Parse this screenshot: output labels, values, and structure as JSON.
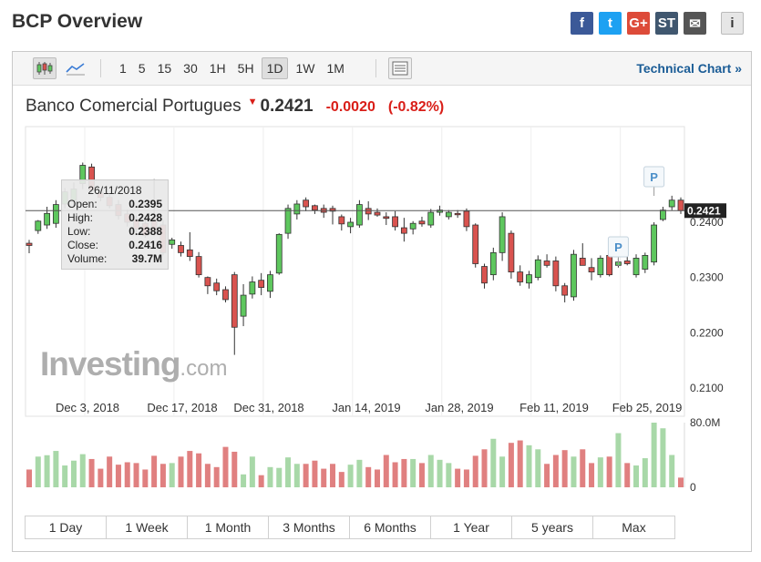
{
  "title": "BCP Overview",
  "share": [
    {
      "name": "facebook-icon",
      "glyph": "f",
      "color": "#3b5998"
    },
    {
      "name": "twitter-icon",
      "glyph": "t",
      "color": "#1da1f2"
    },
    {
      "name": "google-plus-icon",
      "glyph": "G+",
      "color": "#dd4b39"
    },
    {
      "name": "stocktwits-icon",
      "glyph": "ST",
      "color": "#40576f"
    },
    {
      "name": "email-icon",
      "glyph": "✉",
      "color": "#555555"
    },
    {
      "name": "info-icon",
      "glyph": "i",
      "color": "#e6e6e6"
    }
  ],
  "toolbar": {
    "intervals": [
      "1",
      "5",
      "15",
      "30",
      "1H",
      "5H",
      "1D",
      "1W",
      "1M"
    ],
    "active_interval": "1D",
    "technical_link": "Technical Chart »"
  },
  "quote": {
    "name": "Banco Comercial Portugues",
    "price": "0.2421",
    "change": "-0.0020",
    "change_pct": "(-0.82%)",
    "last_label": "0.2421"
  },
  "tooltip": {
    "date": "26/11/2018",
    "rows": [
      {
        "label": "Open:",
        "value": "0.2395"
      },
      {
        "label": "High:",
        "value": "0.2428"
      },
      {
        "label": "Low:",
        "value": "0.2388"
      },
      {
        "label": "Close:",
        "value": "0.2416"
      },
      {
        "label": "Volume:",
        "value": "39.7M"
      }
    ]
  },
  "watermark": {
    "brand": "Investing",
    "suffix": ".com"
  },
  "ranges": [
    "1 Day",
    "1 Week",
    "1 Month",
    "3 Months",
    "6 Months",
    "1 Year",
    "5 years",
    "Max"
  ],
  "colors": {
    "up": "#5ec75e",
    "down": "#d9534f",
    "vol_up": "#a8d8a8",
    "vol_down": "#e08080"
  },
  "chart_data": {
    "type": "candlestick",
    "ylim": [
      0.21,
      0.25
    ],
    "yticks": [
      "0.2100",
      "0.2200",
      "0.2300",
      "0.2400"
    ],
    "xticks": [
      "Dec 3, 2018",
      "Dec 17, 2018",
      "Dec 31, 2018",
      "Jan 14, 2019",
      "Jan 28, 2019",
      "Feb 11, 2019",
      "Feb 25, 2019"
    ],
    "volume_ticks": [
      "80.0M",
      "0"
    ],
    "volume_max": 80,
    "last_price": 0.2421,
    "markers": [
      "P",
      "P"
    ],
    "candles": [
      {
        "o": 0.2362,
        "h": 0.2368,
        "l": 0.2344,
        "c": 0.2358,
        "v": 22
      },
      {
        "o": 0.2385,
        "h": 0.2404,
        "l": 0.2379,
        "c": 0.2402,
        "v": 38
      },
      {
        "o": 0.2395,
        "h": 0.2428,
        "l": 0.2388,
        "c": 0.2416,
        "v": 39.7
      },
      {
        "o": 0.2398,
        "h": 0.244,
        "l": 0.239,
        "c": 0.2432,
        "v": 45
      },
      {
        "o": 0.2433,
        "h": 0.2462,
        "l": 0.2425,
        "c": 0.2455,
        "v": 27
      },
      {
        "o": 0.244,
        "h": 0.2472,
        "l": 0.2428,
        "c": 0.246,
        "v": 33
      },
      {
        "o": 0.247,
        "h": 0.2508,
        "l": 0.246,
        "c": 0.2503,
        "v": 41
      },
      {
        "o": 0.25,
        "h": 0.2506,
        "l": 0.2452,
        "c": 0.2458,
        "v": 35
      },
      {
        "o": 0.2453,
        "h": 0.246,
        "l": 0.2438,
        "c": 0.2445,
        "v": 23
      },
      {
        "o": 0.2445,
        "h": 0.245,
        "l": 0.2425,
        "c": 0.243,
        "v": 38
      },
      {
        "o": 0.2432,
        "h": 0.244,
        "l": 0.2405,
        "c": 0.2412,
        "v": 28
      },
      {
        "o": 0.2415,
        "h": 0.2423,
        "l": 0.2392,
        "c": 0.24,
        "v": 31
      },
      {
        "o": 0.2405,
        "h": 0.2412,
        "l": 0.238,
        "c": 0.2388,
        "v": 30
      },
      {
        "o": 0.2398,
        "h": 0.241,
        "l": 0.2372,
        "c": 0.2376,
        "v": 22
      },
      {
        "o": 0.2405,
        "h": 0.2478,
        "l": 0.2375,
        "c": 0.2385,
        "v": 39
      },
      {
        "o": 0.2395,
        "h": 0.2404,
        "l": 0.234,
        "c": 0.2345,
        "v": 29
      },
      {
        "o": 0.236,
        "h": 0.2372,
        "l": 0.2352,
        "c": 0.2368,
        "v": 30
      },
      {
        "o": 0.2358,
        "h": 0.2365,
        "l": 0.2338,
        "c": 0.2345,
        "v": 38
      },
      {
        "o": 0.235,
        "h": 0.2382,
        "l": 0.233,
        "c": 0.2338,
        "v": 45
      },
      {
        "o": 0.2338,
        "h": 0.2346,
        "l": 0.23,
        "c": 0.2305,
        "v": 42
      },
      {
        "o": 0.23,
        "h": 0.2302,
        "l": 0.227,
        "c": 0.2285,
        "v": 29
      },
      {
        "o": 0.229,
        "h": 0.2298,
        "l": 0.2268,
        "c": 0.2276,
        "v": 25
      },
      {
        "o": 0.2278,
        "h": 0.2284,
        "l": 0.2255,
        "c": 0.226,
        "v": 50
      },
      {
        "o": 0.2305,
        "h": 0.231,
        "l": 0.216,
        "c": 0.221,
        "v": 44
      },
      {
        "o": 0.223,
        "h": 0.2288,
        "l": 0.2212,
        "c": 0.2268,
        "v": 16
      },
      {
        "o": 0.227,
        "h": 0.2302,
        "l": 0.2262,
        "c": 0.2292,
        "v": 38
      },
      {
        "o": 0.2295,
        "h": 0.2308,
        "l": 0.2268,
        "c": 0.2282,
        "v": 15
      },
      {
        "o": 0.2275,
        "h": 0.2312,
        "l": 0.2263,
        "c": 0.2305,
        "v": 25
      },
      {
        "o": 0.2308,
        "h": 0.238,
        "l": 0.2305,
        "c": 0.2378,
        "v": 24
      },
      {
        "o": 0.238,
        "h": 0.2432,
        "l": 0.237,
        "c": 0.2425,
        "v": 37
      },
      {
        "o": 0.2415,
        "h": 0.244,
        "l": 0.2405,
        "c": 0.2433,
        "v": 29
      },
      {
        "o": 0.244,
        "h": 0.2445,
        "l": 0.242,
        "c": 0.2428,
        "v": 29
      },
      {
        "o": 0.243,
        "h": 0.2432,
        "l": 0.2415,
        "c": 0.2422,
        "v": 33
      },
      {
        "o": 0.2425,
        "h": 0.2432,
        "l": 0.2408,
        "c": 0.2418,
        "v": 23
      },
      {
        "o": 0.2425,
        "h": 0.243,
        "l": 0.2396,
        "c": 0.242,
        "v": 29
      },
      {
        "o": 0.241,
        "h": 0.2414,
        "l": 0.2385,
        "c": 0.2397,
        "v": 19
      },
      {
        "o": 0.2392,
        "h": 0.2408,
        "l": 0.238,
        "c": 0.24,
        "v": 28
      },
      {
        "o": 0.2395,
        "h": 0.244,
        "l": 0.239,
        "c": 0.2432,
        "v": 34
      },
      {
        "o": 0.2425,
        "h": 0.2438,
        "l": 0.2404,
        "c": 0.2415,
        "v": 25
      },
      {
        "o": 0.2418,
        "h": 0.2425,
        "l": 0.241,
        "c": 0.2413,
        "v": 22
      },
      {
        "o": 0.241,
        "h": 0.2418,
        "l": 0.2395,
        "c": 0.2407,
        "v": 40
      },
      {
        "o": 0.241,
        "h": 0.242,
        "l": 0.2385,
        "c": 0.2392,
        "v": 31
      },
      {
        "o": 0.239,
        "h": 0.2408,
        "l": 0.2365,
        "c": 0.238,
        "v": 35
      },
      {
        "o": 0.2388,
        "h": 0.2402,
        "l": 0.2378,
        "c": 0.2398,
        "v": 35
      },
      {
        "o": 0.2402,
        "h": 0.241,
        "l": 0.2392,
        "c": 0.2397,
        "v": 30
      },
      {
        "o": 0.2395,
        "h": 0.2424,
        "l": 0.239,
        "c": 0.2418,
        "v": 40
      },
      {
        "o": 0.2418,
        "h": 0.243,
        "l": 0.2412,
        "c": 0.2422,
        "v": 34
      },
      {
        "o": 0.241,
        "h": 0.2422,
        "l": 0.2405,
        "c": 0.2418,
        "v": 30
      },
      {
        "o": 0.2416,
        "h": 0.2422,
        "l": 0.2408,
        "c": 0.2414,
        "v": 23
      },
      {
        "o": 0.242,
        "h": 0.2425,
        "l": 0.2384,
        "c": 0.2392,
        "v": 22
      },
      {
        "o": 0.2395,
        "h": 0.2398,
        "l": 0.2318,
        "c": 0.2325,
        "v": 39
      },
      {
        "o": 0.232,
        "h": 0.2325,
        "l": 0.228,
        "c": 0.229,
        "v": 47
      },
      {
        "o": 0.2305,
        "h": 0.2354,
        "l": 0.2295,
        "c": 0.2345,
        "v": 60
      },
      {
        "o": 0.2345,
        "h": 0.2418,
        "l": 0.233,
        "c": 0.241,
        "v": 38
      },
      {
        "o": 0.238,
        "h": 0.2385,
        "l": 0.2298,
        "c": 0.231,
        "v": 55
      },
      {
        "o": 0.231,
        "h": 0.2322,
        "l": 0.2285,
        "c": 0.2292,
        "v": 58
      },
      {
        "o": 0.229,
        "h": 0.2312,
        "l": 0.228,
        "c": 0.2305,
        "v": 52
      },
      {
        "o": 0.23,
        "h": 0.234,
        "l": 0.2295,
        "c": 0.2332,
        "v": 47
      },
      {
        "o": 0.233,
        "h": 0.2342,
        "l": 0.2318,
        "c": 0.2322,
        "v": 29
      },
      {
        "o": 0.233,
        "h": 0.2338,
        "l": 0.2275,
        "c": 0.2285,
        "v": 40
      },
      {
        "o": 0.2285,
        "h": 0.229,
        "l": 0.2255,
        "c": 0.2268,
        "v": 46
      },
      {
        "o": 0.2265,
        "h": 0.235,
        "l": 0.2258,
        "c": 0.2342,
        "v": 38
      },
      {
        "o": 0.2335,
        "h": 0.2362,
        "l": 0.2325,
        "c": 0.2322,
        "v": 47
      },
      {
        "o": 0.2318,
        "h": 0.2335,
        "l": 0.2295,
        "c": 0.231,
        "v": 30
      },
      {
        "o": 0.2305,
        "h": 0.234,
        "l": 0.23,
        "c": 0.2335,
        "v": 37
      },
      {
        "o": 0.234,
        "h": 0.2352,
        "l": 0.2302,
        "c": 0.2305,
        "v": 38
      },
      {
        "o": 0.2322,
        "h": 0.2335,
        "l": 0.2318,
        "c": 0.2328,
        "v": 67
      },
      {
        "o": 0.233,
        "h": 0.2338,
        "l": 0.2322,
        "c": 0.2325,
        "v": 30
      },
      {
        "o": 0.2305,
        "h": 0.2342,
        "l": 0.23,
        "c": 0.2335,
        "v": 27
      },
      {
        "o": 0.2315,
        "h": 0.2345,
        "l": 0.2308,
        "c": 0.234,
        "v": 36
      },
      {
        "o": 0.2328,
        "h": 0.24,
        "l": 0.2322,
        "c": 0.2395,
        "v": 80
      },
      {
        "o": 0.2405,
        "h": 0.2428,
        "l": 0.2402,
        "c": 0.2422,
        "v": 73
      },
      {
        "o": 0.2428,
        "h": 0.2448,
        "l": 0.2422,
        "c": 0.244,
        "v": 40
      },
      {
        "o": 0.244,
        "h": 0.2445,
        "l": 0.2415,
        "c": 0.2421,
        "v": 12
      }
    ]
  }
}
